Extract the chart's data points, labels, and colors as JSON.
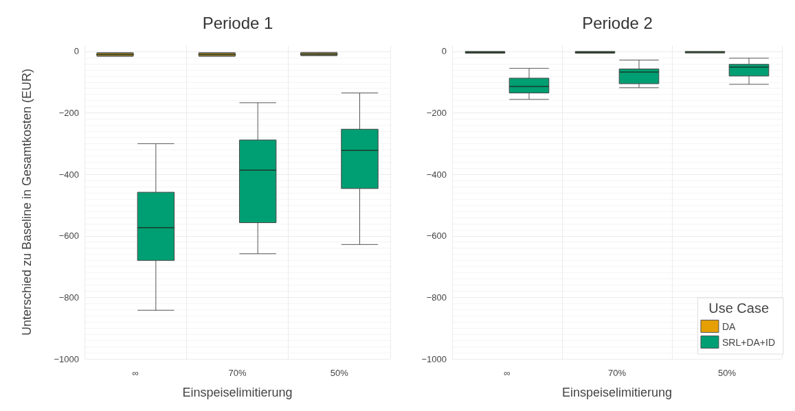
{
  "chart_data": [
    {
      "type": "box",
      "title": "Periode 1",
      "xlabel": "Einspeiselimitierung",
      "ylabel": "Unterschied zu Baseline in Gesamtkosten (EUR)",
      "categories": [
        "∞",
        "70%",
        "50%"
      ],
      "ylim": [
        -1000,
        20
      ],
      "yticks": [
        -1000,
        -800,
        -600,
        -400,
        -200,
        0
      ],
      "grid": true,
      "legend": false,
      "series": [
        {
          "color": "#e69f00",
          "boxes": [
            {
              "low": -16,
              "q1": -14,
              "median": -10,
              "q3": -6,
              "high": -4
            },
            {
              "low": -16,
              "q1": -14,
              "median": -10,
              "q3": -6,
              "high": -4
            },
            {
              "low": -14,
              "q1": -12,
              "median": -9,
              "q3": -5,
              "high": -3
            }
          ]
        },
        {
          "color": "#009e73",
          "boxes": [
            {
              "low": -842,
              "q1": -680,
              "median": -573,
              "q3": -458,
              "high": -300
            },
            {
              "low": -658,
              "q1": -557,
              "median": -386,
              "q3": -288,
              "high": -167
            },
            {
              "low": -628,
              "q1": -446,
              "median": -322,
              "q3": -253,
              "high": -135
            }
          ]
        }
      ]
    },
    {
      "type": "box",
      "title": "Periode 2",
      "xlabel": "Einspeiselimitierung",
      "legend_title": "Use Case",
      "categories": [
        "∞",
        "70%",
        "50%"
      ],
      "ylim": [
        -1000,
        20
      ],
      "yticks": [
        -1000,
        -800,
        -600,
        -400,
        -200,
        0
      ],
      "grid": true,
      "legend": "bottom right",
      "series": [
        {
          "name": "DA",
          "color": "#e69f00",
          "boxes": [
            {
              "low": -6,
              "q1": -5,
              "median": -3,
              "q3": -1,
              "high": 0
            },
            {
              "low": -6,
              "q1": -5,
              "median": -3,
              "q3": -1,
              "high": 0
            },
            {
              "low": -5,
              "q1": -4,
              "median": -2,
              "q3": -1,
              "high": 0
            }
          ]
        },
        {
          "name": "SRL+DA+ID",
          "color": "#009e73",
          "boxes": [
            {
              "low": -156,
              "q1": -135,
              "median": -114,
              "q3": -87,
              "high": -55
            },
            {
              "low": -118,
              "q1": -105,
              "median": -67,
              "q3": -57,
              "high": -28
            },
            {
              "low": -107,
              "q1": -80,
              "median": -51,
              "q3": -42,
              "high": -22
            }
          ]
        }
      ]
    }
  ]
}
